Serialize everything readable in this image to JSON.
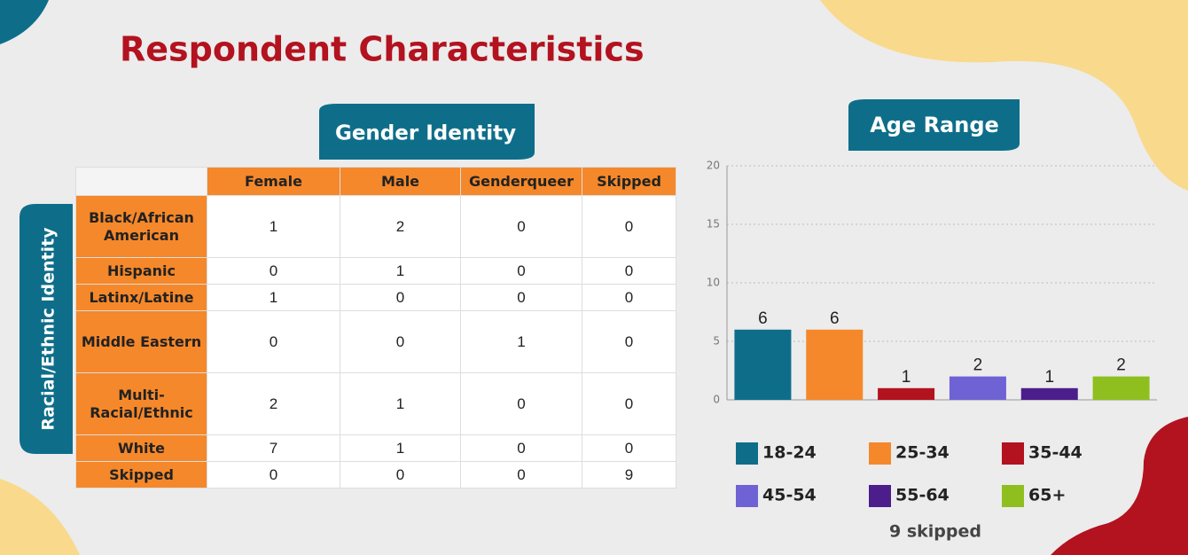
{
  "title": "Respondent Characteristics",
  "table": {
    "column_title": "Gender Identity",
    "row_title": "Racial/Ethnic Identity",
    "columns": [
      "Female",
      "Male",
      "Genderqueer",
      "Skipped"
    ],
    "rows": [
      {
        "label": "Black/African American",
        "values": [
          1,
          2,
          0,
          0
        ]
      },
      {
        "label": "Hispanic",
        "values": [
          0,
          1,
          0,
          0
        ]
      },
      {
        "label": "Latinx/Latine",
        "values": [
          1,
          0,
          0,
          0
        ]
      },
      {
        "label": "Middle Eastern",
        "values": [
          0,
          0,
          1,
          0
        ]
      },
      {
        "label": "Multi-Racial/Ethnic",
        "values": [
          2,
          1,
          0,
          0
        ]
      },
      {
        "label": "White",
        "values": [
          7,
          1,
          0,
          0
        ]
      },
      {
        "label": "Skipped",
        "values": [
          0,
          0,
          0,
          9
        ]
      }
    ]
  },
  "chart_data": {
    "type": "bar",
    "title": "Age Range",
    "categories": [
      "18-24",
      "25-34",
      "35-44",
      "45-54",
      "55-64",
      "65+"
    ],
    "values": [
      6,
      6,
      1,
      2,
      1,
      2
    ],
    "colors": [
      "#0e6e8a",
      "#f5882a",
      "#b3121f",
      "#6f62d4",
      "#4b1e8c",
      "#8fbf1f"
    ],
    "ylim": [
      0,
      20
    ],
    "yticks": [
      0,
      5,
      10,
      15,
      20
    ],
    "grid": true,
    "note": "9 skipped"
  }
}
